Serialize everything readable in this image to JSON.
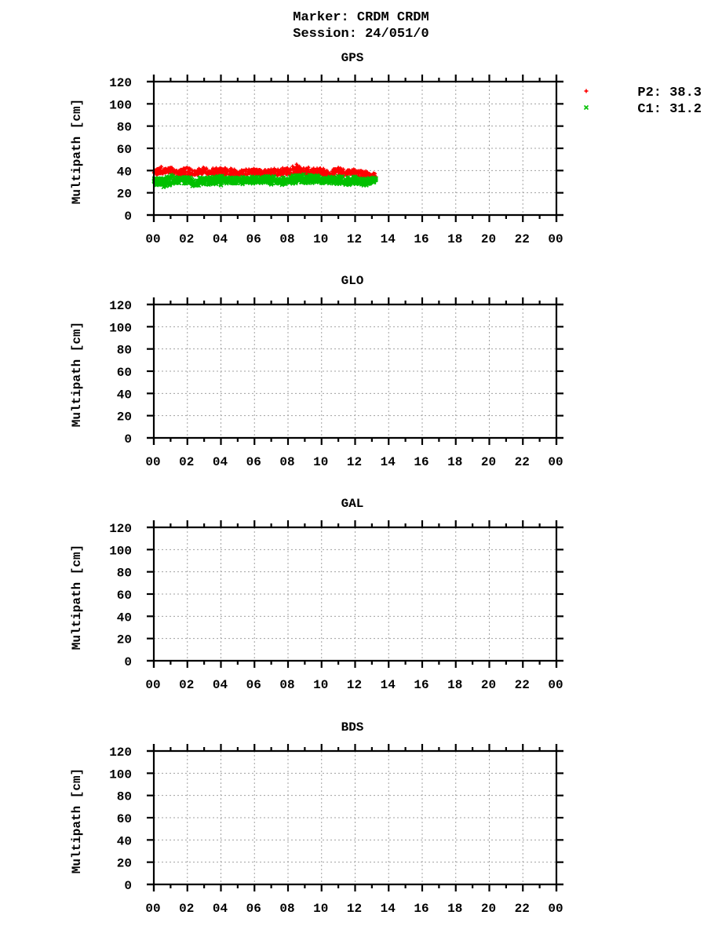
{
  "header": {
    "line1": "Marker: CRDM CRDM",
    "line2": "Session: 24/051/0"
  },
  "legend": [
    {
      "symbol": "+",
      "label": "P2: 38.3",
      "color": "#ff0000"
    },
    {
      "symbol": "x",
      "label": "C1: 31.2",
      "color": "#00c000"
    }
  ],
  "chart_data": [
    {
      "type": "scatter",
      "title": "GPS",
      "xlabel": "",
      "ylabel": "Multipath [cm]",
      "xlim": [
        0,
        24
      ],
      "ylim": [
        0,
        120
      ],
      "xticks": [
        "00",
        "02",
        "04",
        "06",
        "08",
        "10",
        "12",
        "14",
        "16",
        "18",
        "20",
        "22",
        "00"
      ],
      "yticks": [
        "0",
        "20",
        "40",
        "60",
        "80",
        "100",
        "120"
      ],
      "grid": true,
      "series": [
        {
          "name": "P2",
          "mean": 38.3,
          "color": "#ff0000",
          "marker": "+",
          "x_range": [
            0,
            13.25
          ],
          "approx_upper_envelope": [
            [
              0,
              41
            ],
            [
              0.5,
              44
            ],
            [
              1,
              43
            ],
            [
              1.5,
              40
            ],
            [
              2,
              45
            ],
            [
              2.5,
              41
            ],
            [
              3,
              43
            ],
            [
              3.5,
              42
            ],
            [
              4,
              44
            ],
            [
              4.5,
              43
            ],
            [
              5,
              40
            ],
            [
              5.5,
              43
            ],
            [
              6,
              42
            ],
            [
              6.5,
              41
            ],
            [
              7,
              43
            ],
            [
              7.5,
              42
            ],
            [
              8,
              44
            ],
            [
              8.5,
              46
            ],
            [
              9,
              43
            ],
            [
              9.5,
              44
            ],
            [
              10,
              43
            ],
            [
              10.5,
              40
            ],
            [
              11,
              44
            ],
            [
              11.5,
              41
            ],
            [
              12,
              42
            ],
            [
              12.5,
              41
            ],
            [
              13,
              38
            ],
            [
              13.25,
              37
            ]
          ],
          "approx_lower_envelope": [
            [
              0,
              36
            ],
            [
              0.5,
              35
            ],
            [
              1,
              37
            ],
            [
              1.5,
              35
            ],
            [
              2,
              34
            ],
            [
              2.5,
              35
            ],
            [
              3,
              36
            ],
            [
              3.5,
              35
            ],
            [
              4,
              36
            ],
            [
              4.5,
              35
            ],
            [
              5,
              34
            ],
            [
              5.5,
              35
            ],
            [
              6,
              36
            ],
            [
              6.5,
              35
            ],
            [
              7,
              35
            ],
            [
              7.5,
              34
            ],
            [
              8,
              35
            ],
            [
              8.5,
              36
            ],
            [
              9,
              35
            ],
            [
              9.5,
              34
            ],
            [
              10,
              35
            ],
            [
              10.5,
              33
            ],
            [
              11,
              35
            ],
            [
              11.5,
              34
            ],
            [
              12,
              35
            ],
            [
              12.5,
              33
            ],
            [
              13,
              32
            ],
            [
              13.25,
              32
            ]
          ]
        },
        {
          "name": "C1",
          "mean": 31.2,
          "color": "#00c000",
          "marker": "x",
          "x_range": [
            0,
            13.25
          ],
          "approx_upper_envelope": [
            [
              0,
              33
            ],
            [
              0.5,
              34
            ],
            [
              1,
              38
            ],
            [
              1.5,
              35
            ],
            [
              2,
              36
            ],
            [
              2.5,
              33
            ],
            [
              3,
              35
            ],
            [
              3.5,
              34
            ],
            [
              4,
              36
            ],
            [
              4.5,
              34
            ],
            [
              5,
              36
            ],
            [
              5.5,
              34
            ],
            [
              6,
              36
            ],
            [
              6.5,
              35
            ],
            [
              7,
              36
            ],
            [
              7.5,
              34
            ],
            [
              8,
              35
            ],
            [
              8.5,
              37
            ],
            [
              9,
              38
            ],
            [
              9.5,
              37
            ],
            [
              10,
              36
            ],
            [
              10.5,
              35
            ],
            [
              11,
              36
            ],
            [
              11.5,
              34
            ],
            [
              12,
              35
            ],
            [
              12.5,
              33
            ],
            [
              13,
              34
            ],
            [
              13.25,
              33
            ]
          ],
          "approx_lower_envelope": [
            [
              0,
              28
            ],
            [
              0.5,
              24
            ],
            [
              1,
              26
            ],
            [
              1.5,
              28
            ],
            [
              2,
              27
            ],
            [
              2.5,
              25
            ],
            [
              3,
              26
            ],
            [
              3.5,
              27
            ],
            [
              4,
              26
            ],
            [
              4.5,
              28
            ],
            [
              5,
              27
            ],
            [
              5.5,
              28
            ],
            [
              6,
              27
            ],
            [
              6.5,
              28
            ],
            [
              7,
              27
            ],
            [
              7.5,
              26
            ],
            [
              8,
              27
            ],
            [
              8.5,
              28
            ],
            [
              9,
              27
            ],
            [
              9.5,
              28
            ],
            [
              10,
              27
            ],
            [
              10.5,
              28
            ],
            [
              11,
              27
            ],
            [
              11.5,
              26
            ],
            [
              12,
              27
            ],
            [
              12.5,
              26
            ],
            [
              13,
              28
            ],
            [
              13.25,
              28
            ]
          ]
        }
      ]
    },
    {
      "type": "scatter",
      "title": "GLO",
      "xlabel": "",
      "ylabel": "Multipath [cm]",
      "xlim": [
        0,
        24
      ],
      "ylim": [
        0,
        120
      ],
      "xticks": [
        "00",
        "02",
        "04",
        "06",
        "08",
        "10",
        "12",
        "14",
        "16",
        "18",
        "20",
        "22",
        "00"
      ],
      "yticks": [
        "0",
        "20",
        "40",
        "60",
        "80",
        "100",
        "120"
      ],
      "grid": true,
      "series": []
    },
    {
      "type": "scatter",
      "title": "GAL",
      "xlabel": "",
      "ylabel": "Multipath [cm]",
      "xlim": [
        0,
        24
      ],
      "ylim": [
        0,
        120
      ],
      "xticks": [
        "00",
        "02",
        "04",
        "06",
        "08",
        "10",
        "12",
        "14",
        "16",
        "18",
        "20",
        "22",
        "00"
      ],
      "yticks": [
        "0",
        "20",
        "40",
        "60",
        "80",
        "100",
        "120"
      ],
      "grid": true,
      "series": []
    },
    {
      "type": "scatter",
      "title": "BDS",
      "xlabel": "",
      "ylabel": "Multipath [cm]",
      "xlim": [
        0,
        24
      ],
      "ylim": [
        0,
        120
      ],
      "xticks": [
        "00",
        "02",
        "04",
        "06",
        "08",
        "10",
        "12",
        "14",
        "16",
        "18",
        "20",
        "22",
        "00"
      ],
      "yticks": [
        "0",
        "20",
        "40",
        "60",
        "80",
        "100",
        "120"
      ],
      "grid": true,
      "series": []
    }
  ]
}
